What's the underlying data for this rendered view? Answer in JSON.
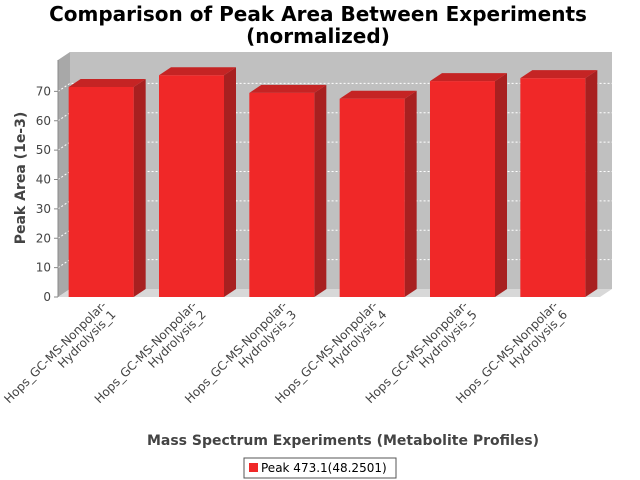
{
  "chart_data": {
    "type": "bar",
    "title": [
      "Comparison of Peak Area Between Experiments",
      "(normalized)"
    ],
    "xlabel": "Mass Spectrum Experiments (Metabolite Profiles)",
    "ylabel": "Peak Area (1e-3)",
    "ylim": [
      0,
      80
    ],
    "yticks": [
      0,
      10,
      20,
      30,
      40,
      50,
      60,
      70
    ],
    "categories": [
      [
        "Hops_GC-MS-Nonpolar-",
        "Hydrolysis_1"
      ],
      [
        "Hops_GC-MS-Nonpolar-",
        "Hydrolysis_2"
      ],
      [
        "Hops_GC-MS-Nonpolar-",
        "Hydrolysis_3"
      ],
      [
        "Hops_GC-MS-Nonpolar-",
        "Hydrolysis_4"
      ],
      [
        "Hops_GC-MS-Nonpolar-",
        "Hydrolysis_5"
      ],
      [
        "Hops_GC-MS-Nonpolar-",
        "Hydrolysis_6"
      ]
    ],
    "series": [
      {
        "name": "Peak 473.1(48.2501)",
        "values": [
          71.5,
          75.5,
          69.5,
          67.5,
          73.5,
          74.5
        ]
      }
    ],
    "grid": true,
    "legend": "bottom-center",
    "style": "3d",
    "colors": {
      "bar_front": "#f02828",
      "bar_side": "#a82020",
      "bar_top": "#c52424",
      "plot_back": "#c0c0c0",
      "plot_wall": "#a8a8a8",
      "plot_floor": "#d8d8d8",
      "gridline": "#ffffff"
    }
  }
}
